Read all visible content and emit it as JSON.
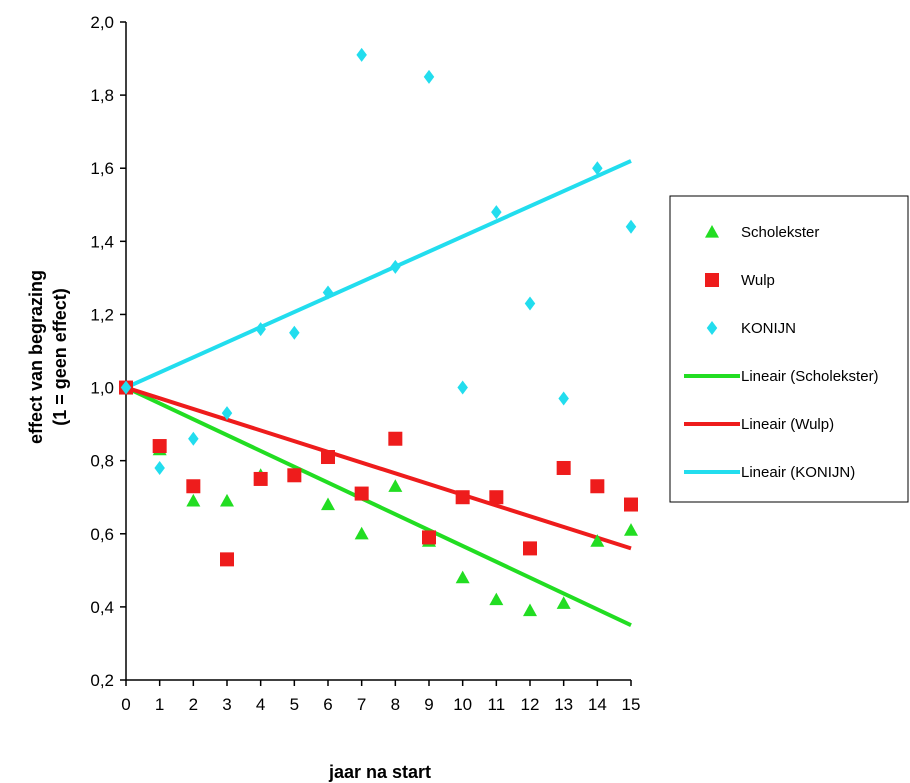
{
  "chart_data": {
    "type": "scatter",
    "title": "",
    "xlabel": "jaar na start",
    "ylabel_lines": [
      "effect  van begrazing",
      "(1 = geen effect)"
    ],
    "xlim": [
      0,
      15
    ],
    "ylim": [
      0.2,
      2.0
    ],
    "x_ticks": [
      0,
      1,
      2,
      3,
      4,
      5,
      6,
      7,
      8,
      9,
      10,
      11,
      12,
      13,
      14,
      15
    ],
    "y_ticks": [
      "0,2",
      "0,4",
      "0,6",
      "0,8",
      "1,0",
      "1,2",
      "1,4",
      "1,6",
      "1,8",
      "2,0"
    ],
    "grid": false,
    "legend_position": "right",
    "series": [
      {
        "name": "Scholekster",
        "marker": "triangle",
        "color": "#22dd22",
        "x": [
          0,
          1,
          2,
          3,
          4,
          5,
          6,
          7,
          8,
          9,
          10,
          11,
          12,
          13,
          14,
          15
        ],
        "y": [
          1.0,
          0.83,
          0.69,
          0.69,
          0.76,
          0.76,
          0.68,
          0.6,
          0.73,
          0.58,
          0.48,
          0.42,
          0.39,
          0.41,
          0.58,
          0.61
        ]
      },
      {
        "name": "Wulp",
        "marker": "square",
        "color": "#ee1c1c",
        "x": [
          0,
          1,
          2,
          3,
          4,
          5,
          6,
          7,
          8,
          9,
          10,
          11,
          12,
          13,
          14,
          15
        ],
        "y": [
          1.0,
          0.84,
          0.73,
          0.53,
          0.75,
          0.76,
          0.81,
          0.71,
          0.86,
          0.59,
          0.7,
          0.7,
          0.56,
          0.78,
          0.73,
          0.68
        ]
      },
      {
        "name": "KONIJN",
        "marker": "diamond",
        "color": "#22ddee",
        "x": [
          0,
          1,
          2,
          3,
          4,
          5,
          6,
          7,
          8,
          9,
          10,
          11,
          12,
          13,
          14,
          15
        ],
        "y": [
          1.0,
          0.78,
          0.86,
          0.93,
          1.16,
          1.15,
          1.26,
          1.91,
          1.33,
          1.85,
          1.0,
          1.48,
          1.23,
          0.97,
          1.6,
          1.44
        ]
      }
    ],
    "trendlines": [
      {
        "name": "Lineair (Scholekster)",
        "color": "#22dd22",
        "x": [
          0,
          15
        ],
        "y": [
          1.0,
          0.35
        ]
      },
      {
        "name": "Lineair (Wulp)",
        "color": "#ee1c1c",
        "x": [
          0,
          15
        ],
        "y": [
          1.0,
          0.56
        ]
      },
      {
        "name": "Lineair (KONIJN)",
        "color": "#22ddee",
        "x": [
          0,
          15
        ],
        "y": [
          1.0,
          1.62
        ]
      }
    ]
  }
}
